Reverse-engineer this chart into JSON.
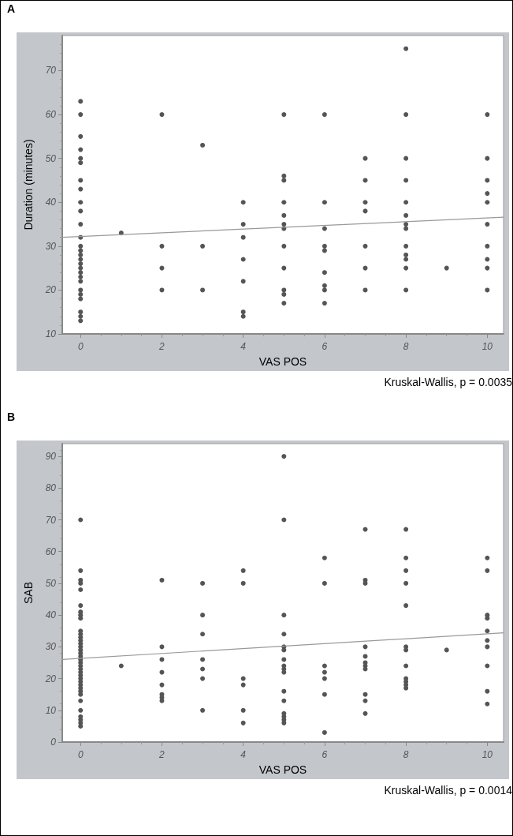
{
  "chart_data": [
    {
      "type": "scatter",
      "title": "A",
      "xlabel": "VAS POS",
      "ylabel": "Duration (minutes)",
      "annotations": [
        "Kruskal-Wallis, p = 0.0035"
      ],
      "xlim": [
        -0.45,
        10.4
      ],
      "ylim": [
        10,
        78
      ],
      "xticks": [
        0,
        2,
        4,
        6,
        8,
        10
      ],
      "yticks": [
        10,
        20,
        30,
        40,
        50,
        60,
        70
      ],
      "grid": false,
      "marker": "circle",
      "series": [
        {
          "type": "scatter",
          "color": "#555555",
          "x": [
            0,
            0,
            0,
            0,
            0,
            0,
            0,
            0,
            0,
            0,
            0,
            0,
            0,
            0,
            0,
            0,
            0,
            0,
            0,
            0,
            0,
            0,
            0,
            0,
            0,
            0,
            0,
            1,
            2,
            2,
            2,
            2,
            3,
            3,
            3,
            4,
            4,
            4,
            4,
            4,
            4,
            4,
            5,
            5,
            5,
            5,
            5,
            5,
            5,
            5,
            5,
            5,
            5,
            5,
            6,
            6,
            6,
            6,
            6,
            6,
            6,
            6,
            6,
            7,
            7,
            7,
            7,
            7,
            7,
            7,
            8,
            8,
            8,
            8,
            8,
            8,
            8,
            8,
            8,
            8,
            8,
            8,
            8,
            9,
            10,
            10,
            10,
            10,
            10,
            10,
            10,
            10,
            10,
            10
          ],
          "values": [
            63,
            60,
            55,
            52,
            50,
            49,
            45,
            43,
            40,
            38,
            35,
            32,
            30,
            29,
            28,
            27,
            26,
            25,
            24,
            23,
            22,
            20,
            19,
            18,
            15,
            14,
            13,
            33,
            60,
            30,
            25,
            20,
            53,
            30,
            20,
            40,
            35,
            32,
            27,
            22,
            15,
            14,
            60,
            46,
            45,
            40,
            37,
            35,
            34,
            30,
            25,
            20,
            19,
            17,
            60,
            40,
            34,
            30,
            29,
            24,
            21,
            20,
            17,
            50,
            45,
            40,
            38,
            30,
            25,
            20,
            75,
            60,
            50,
            45,
            40,
            37,
            35,
            34,
            30,
            28,
            27,
            25,
            20,
            25,
            60,
            50,
            45,
            42,
            40,
            35,
            30,
            27,
            25,
            20
          ]
        },
        {
          "type": "line",
          "marker": "none",
          "color": "#999999",
          "x": [
            -0.45,
            10.4
          ],
          "values": [
            32,
            36.6
          ]
        }
      ]
    },
    {
      "type": "scatter",
      "title": "B",
      "xlabel": "VAS POS",
      "ylabel": "SAB",
      "annotations": [
        "Kruskal-Wallis, p = 0.0014"
      ],
      "xlim": [
        -0.45,
        10.4
      ],
      "ylim": [
        0,
        94
      ],
      "xticks": [
        0,
        2,
        4,
        6,
        8,
        10
      ],
      "yticks": [
        0,
        10,
        20,
        30,
        40,
        50,
        60,
        70,
        80,
        90
      ],
      "grid": false,
      "marker": "circle",
      "series": [
        {
          "type": "scatter",
          "color": "#555555",
          "x": [
            0,
            0,
            0,
            0,
            0,
            0,
            0,
            0,
            0,
            0,
            0,
            0,
            0,
            0,
            0,
            0,
            0,
            0,
            0,
            0,
            0,
            0,
            0,
            0,
            0,
            0,
            0,
            0,
            0,
            0,
            0,
            0,
            0,
            0,
            0,
            0,
            1,
            2,
            2,
            2,
            2,
            2,
            2,
            2,
            2,
            3,
            3,
            3,
            3,
            3,
            3,
            3,
            4,
            4,
            4,
            4,
            4,
            4,
            5,
            5,
            5,
            5,
            5,
            5,
            5,
            5,
            5,
            5,
            5,
            5,
            5,
            5,
            5,
            5,
            6,
            6,
            6,
            6,
            6,
            6,
            6,
            7,
            7,
            7,
            7,
            7,
            7,
            7,
            7,
            7,
            7,
            7,
            8,
            8,
            8,
            8,
            8,
            8,
            8,
            8,
            8,
            8,
            8,
            8,
            9,
            10,
            10,
            10,
            10,
            10,
            10,
            10,
            10,
            10,
            10
          ],
          "values": [
            70,
            54,
            51,
            50,
            48,
            43,
            41,
            40,
            39,
            35,
            34,
            33,
            32,
            31,
            30,
            29,
            28,
            27,
            26,
            25,
            24,
            23,
            22,
            21,
            20,
            19,
            18,
            17,
            16,
            15,
            13,
            10,
            8,
            7,
            6,
            5,
            24,
            51,
            30,
            26,
            22,
            18,
            15,
            14,
            13,
            50,
            40,
            34,
            26,
            23,
            20,
            10,
            54,
            50,
            20,
            18,
            10,
            6,
            90,
            70,
            40,
            34,
            30,
            29,
            26,
            24,
            23,
            22,
            16,
            13,
            9,
            8,
            7,
            6,
            58,
            50,
            24,
            22,
            20,
            15,
            3,
            67,
            51,
            50,
            30,
            27,
            25,
            24,
            23,
            15,
            13,
            9,
            67,
            58,
            54,
            50,
            43,
            30,
            29,
            24,
            20,
            19,
            18,
            17,
            29,
            58,
            54,
            40,
            39,
            35,
            32,
            30,
            24,
            16,
            12
          ]
        },
        {
          "type": "line",
          "marker": "none",
          "color": "#999999",
          "x": [
            -0.45,
            10.4
          ],
          "values": [
            26,
            34.4
          ]
        }
      ]
    }
  ]
}
